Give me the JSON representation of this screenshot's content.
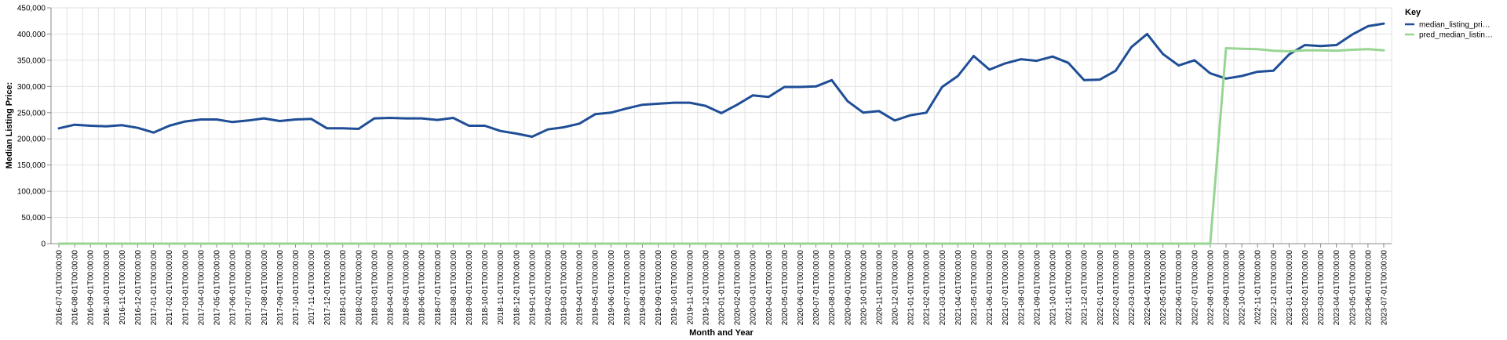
{
  "chart_data": {
    "type": "line",
    "xlabel": "Month and Year",
    "ylabel": "Median Listing Price:",
    "ylim": [
      0,
      450000
    ],
    "y_ticks": [
      "0",
      "50,000",
      "100,000",
      "150,000",
      "200,000",
      "250,000",
      "300,000",
      "350,000",
      "400,000",
      "450,000"
    ],
    "grid": true,
    "legend": {
      "title": "Key",
      "placement": "top-right"
    },
    "x": [
      "2016-07-01T00:00:00",
      "2016-08-01T00:00:00",
      "2016-09-01T00:00:00",
      "2016-10-01T00:00:00",
      "2016-11-01T00:00:00",
      "2016-12-01T00:00:00",
      "2017-01-01T00:00:00",
      "2017-02-01T00:00:00",
      "2017-03-01T00:00:00",
      "2017-04-01T00:00:00",
      "2017-05-01T00:00:00",
      "2017-06-01T00:00:00",
      "2017-07-01T00:00:00",
      "2017-08-01T00:00:00",
      "2017-09-01T00:00:00",
      "2017-10-01T00:00:00",
      "2017-11-01T00:00:00",
      "2017-12-01T00:00:00",
      "2018-01-01T00:00:00",
      "2018-02-01T00:00:00",
      "2018-03-01T00:00:00",
      "2018-04-01T00:00:00",
      "2018-05-01T00:00:00",
      "2018-06-01T00:00:00",
      "2018-07-01T00:00:00",
      "2018-08-01T00:00:00",
      "2018-09-01T00:00:00",
      "2018-10-01T00:00:00",
      "2018-11-01T00:00:00",
      "2018-12-01T00:00:00",
      "2019-01-01T00:00:00",
      "2019-02-01T00:00:00",
      "2019-03-01T00:00:00",
      "2019-04-01T00:00:00",
      "2019-05-01T00:00:00",
      "2019-06-01T00:00:00",
      "2019-07-01T00:00:00",
      "2019-08-01T00:00:00",
      "2019-09-01T00:00:00",
      "2019-10-01T00:00:00",
      "2019-11-01T00:00:00",
      "2019-12-01T00:00:00",
      "2020-01-01T00:00:00",
      "2020-02-01T00:00:00",
      "2020-03-01T00:00:00",
      "2020-04-01T00:00:00",
      "2020-05-01T00:00:00",
      "2020-06-01T00:00:00",
      "2020-07-01T00:00:00",
      "2020-08-01T00:00:00",
      "2020-09-01T00:00:00",
      "2020-10-01T00:00:00",
      "2020-11-01T00:00:00",
      "2020-12-01T00:00:00",
      "2021-01-01T00:00:00",
      "2021-02-01T00:00:00",
      "2021-03-01T00:00:00",
      "2021-04-01T00:00:00",
      "2021-05-01T00:00:00",
      "2021-06-01T00:00:00",
      "2021-07-01T00:00:00",
      "2021-08-01T00:00:00",
      "2021-09-01T00:00:00",
      "2021-10-01T00:00:00",
      "2021-11-01T00:00:00",
      "2021-12-01T00:00:00",
      "2022-01-01T00:00:00",
      "2022-02-01T00:00:00",
      "2022-03-01T00:00:00",
      "2022-04-01T00:00:00",
      "2022-05-01T00:00:00",
      "2022-06-01T00:00:00",
      "2022-07-01T00:00:00",
      "2022-08-01T00:00:00",
      "2022-09-01T00:00:00",
      "2022-10-01T00:00:00",
      "2022-11-01T00:00:00",
      "2022-12-01T00:00:00",
      "2023-01-01T00:00:00",
      "2023-02-01T00:00:00",
      "2023-03-01T00:00:00",
      "2023-04-01T00:00:00",
      "2023-05-01T00:00:00",
      "2023-06-01T00:00:00",
      "2023-07-01T00:00:00"
    ],
    "series": [
      {
        "name": "median_listing_pri…",
        "color": "#1f4e96",
        "values": [
          220000,
          227000,
          225000,
          224000,
          226000,
          221000,
          212000,
          225000,
          233000,
          237000,
          237000,
          232000,
          235000,
          239000,
          234000,
          237000,
          238000,
          220000,
          220000,
          219000,
          239000,
          240000,
          239000,
          239000,
          236000,
          240000,
          225000,
          225000,
          215000,
          210000,
          204000,
          218000,
          222000,
          229000,
          247000,
          250000,
          258000,
          265000,
          267000,
          269000,
          269000,
          263000,
          249000,
          265000,
          283000,
          280000,
          299000,
          299000,
          300000,
          312000,
          272000,
          250000,
          253000,
          235000,
          245000,
          250000,
          299000,
          320000,
          358000,
          332000,
          344000,
          352000,
          349000,
          357000,
          345000,
          312000,
          313000,
          330000,
          375000,
          400000,
          362000,
          340000,
          350000,
          325000,
          315000,
          320000,
          328000,
          330000,
          361000,
          379000,
          377000,
          379000,
          399000,
          415000,
          420000
        ]
      },
      {
        "name": "pred_median_listin…",
        "color": "#98d593",
        "values": [
          0,
          0,
          0,
          0,
          0,
          0,
          0,
          0,
          0,
          0,
          0,
          0,
          0,
          0,
          0,
          0,
          0,
          0,
          0,
          0,
          0,
          0,
          0,
          0,
          0,
          0,
          0,
          0,
          0,
          0,
          0,
          0,
          0,
          0,
          0,
          0,
          0,
          0,
          0,
          0,
          0,
          0,
          0,
          0,
          0,
          0,
          0,
          0,
          0,
          0,
          0,
          0,
          0,
          0,
          0,
          0,
          0,
          0,
          0,
          0,
          0,
          0,
          0,
          0,
          0,
          0,
          0,
          0,
          0,
          0,
          0,
          0,
          0,
          0,
          373000,
          372000,
          371000,
          368000,
          367000,
          369000,
          369000,
          368000,
          370000,
          371000,
          369000
        ]
      }
    ]
  }
}
